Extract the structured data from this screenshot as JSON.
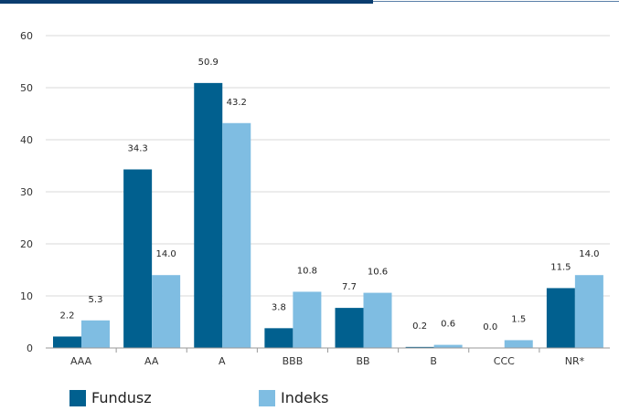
{
  "chart_data": {
    "type": "bar",
    "categories": [
      "AAA",
      "AA",
      "A",
      "BBB",
      "BB",
      "B",
      "CCC",
      "NR*"
    ],
    "series": [
      {
        "name": "Fundusz",
        "color": "#01608f",
        "values": [
          2.2,
          34.3,
          50.9,
          3.8,
          7.7,
          0.2,
          0.0,
          11.5
        ],
        "labels": [
          "2.2",
          "34.3",
          "50.9",
          "3.8",
          "7.7",
          "0.2",
          "0.0",
          "11.5"
        ]
      },
      {
        "name": "Indeks",
        "color": "#7fbde2",
        "values": [
          5.3,
          14.0,
          43.2,
          10.8,
          10.6,
          0.6,
          1.5,
          14.0
        ],
        "labels": [
          "5.3",
          "14.0",
          "43.2",
          "10.8",
          "10.6",
          "0.6",
          "1.5",
          "14.0"
        ]
      }
    ],
    "ylim": [
      0,
      60
    ],
    "yticks": [
      "0",
      "10",
      "20",
      "30",
      "40",
      "50",
      "60"
    ],
    "grid": true,
    "legend": "bottom-left",
    "title": "",
    "xlabel": "",
    "ylabel": ""
  },
  "colors": {
    "header_bar": "#0b3d6f",
    "grid": "#d9d9d9",
    "axis": "#999999"
  }
}
